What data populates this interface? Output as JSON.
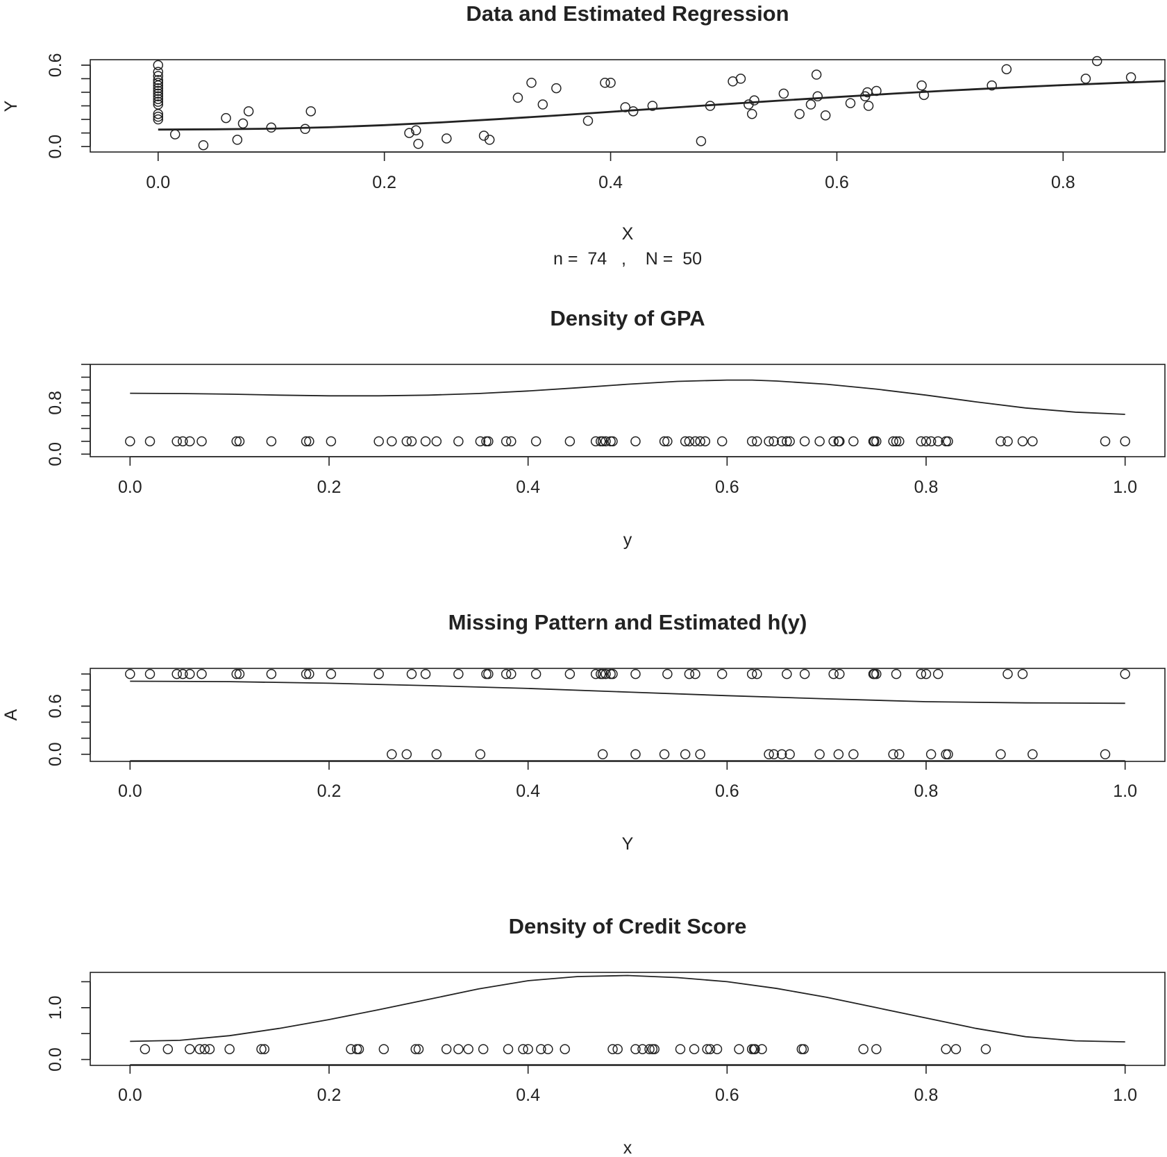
{
  "chart_data": [
    {
      "type": "scatter",
      "title": "Data and Estimated Regression",
      "xlabel": "X",
      "ylabel": "Y",
      "subtitle": "n =  74   ,    N =  50",
      "xlim": [
        -0.06,
        0.89
      ],
      "ylim": [
        -0.04,
        0.64
      ],
      "xticks": [
        0.0,
        0.2,
        0.4,
        0.6,
        0.8
      ],
      "xtick_labels": [
        "0.0",
        "0.2",
        "0.4",
        "0.6",
        "0.8"
      ],
      "yticks": [
        0.0,
        0.6
      ],
      "ytick_labels": [
        "0.0",
        "0.6"
      ],
      "yminor": [
        0.1,
        0.2,
        0.3,
        0.4,
        0.5,
        0.6
      ],
      "points": [
        [
          0,
          0.6
        ],
        [
          0,
          0.55
        ],
        [
          0,
          0.52
        ],
        [
          0,
          0.49
        ],
        [
          0,
          0.47
        ],
        [
          0,
          0.45
        ],
        [
          0,
          0.43
        ],
        [
          0,
          0.41
        ],
        [
          0,
          0.39
        ],
        [
          0,
          0.37
        ],
        [
          0,
          0.35
        ],
        [
          0,
          0.33
        ],
        [
          0,
          0.31
        ],
        [
          0,
          0.24
        ],
        [
          0,
          0.22
        ],
        [
          0,
          0.2
        ],
        [
          0.015,
          0.09
        ],
        [
          0.04,
          0.01
        ],
        [
          0.06,
          0.21
        ],
        [
          0.07,
          0.05
        ],
        [
          0.075,
          0.17
        ],
        [
          0.08,
          0.26
        ],
        [
          0.1,
          0.14
        ],
        [
          0.13,
          0.13
        ],
        [
          0.135,
          0.26
        ],
        [
          0.222,
          0.1
        ],
        [
          0.228,
          0.12
        ],
        [
          0.23,
          0.02
        ],
        [
          0.255,
          0.06
        ],
        [
          0.288,
          0.08
        ],
        [
          0.293,
          0.05
        ],
        [
          0.318,
          0.36
        ],
        [
          0.33,
          0.47
        ],
        [
          0.34,
          0.31
        ],
        [
          0.352,
          0.43
        ],
        [
          0.38,
          0.19
        ],
        [
          0.395,
          0.47
        ],
        [
          0.4,
          0.47
        ],
        [
          0.413,
          0.29
        ],
        [
          0.42,
          0.26
        ],
        [
          0.437,
          0.3
        ],
        [
          0.48,
          0.04
        ],
        [
          0.488,
          0.3
        ],
        [
          0.508,
          0.48
        ],
        [
          0.515,
          0.5
        ],
        [
          0.522,
          0.31
        ],
        [
          0.525,
          0.24
        ],
        [
          0.527,
          0.34
        ],
        [
          0.553,
          0.39
        ],
        [
          0.567,
          0.24
        ],
        [
          0.577,
          0.31
        ],
        [
          0.582,
          0.53
        ],
        [
          0.583,
          0.37
        ],
        [
          0.59,
          0.23
        ],
        [
          0.612,
          0.32
        ],
        [
          0.625,
          0.37
        ],
        [
          0.627,
          0.4
        ],
        [
          0.628,
          0.3
        ],
        [
          0.635,
          0.41
        ],
        [
          0.675,
          0.45
        ],
        [
          0.677,
          0.38
        ],
        [
          0.737,
          0.45
        ],
        [
          0.75,
          0.57
        ],
        [
          0.82,
          0.5
        ],
        [
          0.83,
          0.63
        ],
        [
          0.86,
          0.51
        ]
      ],
      "curve": [
        [
          0,
          0.125
        ],
        [
          0.05,
          0.127
        ],
        [
          0.1,
          0.132
        ],
        [
          0.15,
          0.142
        ],
        [
          0.2,
          0.158
        ],
        [
          0.25,
          0.178
        ],
        [
          0.3,
          0.202
        ],
        [
          0.35,
          0.228
        ],
        [
          0.4,
          0.256
        ],
        [
          0.45,
          0.284
        ],
        [
          0.5,
          0.312
        ],
        [
          0.55,
          0.339
        ],
        [
          0.6,
          0.365
        ],
        [
          0.65,
          0.39
        ],
        [
          0.7,
          0.413
        ],
        [
          0.75,
          0.434
        ],
        [
          0.8,
          0.453
        ],
        [
          0.85,
          0.47
        ],
        [
          0.89,
          0.482
        ]
      ]
    },
    {
      "type": "line",
      "title": "Density of GPA",
      "xlabel": "y",
      "ylabel": "",
      "xlim": [
        -0.04,
        1.04
      ],
      "ylim": [
        -0.04,
        1.4
      ],
      "xticks": [
        0.0,
        0.2,
        0.4,
        0.6,
        0.8,
        1.0
      ],
      "xtick_labels": [
        "0.0",
        "0.2",
        "0.4",
        "0.6",
        "0.8",
        "1.0"
      ],
      "yticks": [
        0.0,
        0.8
      ],
      "ytick_labels": [
        "0.0",
        "0.8"
      ],
      "yminor": [
        0.2,
        0.4,
        0.6,
        0.8,
        1.0,
        1.2,
        1.4
      ],
      "rug_y": 0.2,
      "rug": [
        0.0,
        0.02,
        0.047,
        0.053,
        0.06,
        0.072,
        0.107,
        0.11,
        0.142,
        0.177,
        0.18,
        0.202,
        0.25,
        0.263,
        0.278,
        0.283,
        0.297,
        0.308,
        0.33,
        0.352,
        0.358,
        0.36,
        0.378,
        0.383,
        0.408,
        0.442,
        0.468,
        0.473,
        0.475,
        0.478,
        0.483,
        0.485,
        0.508,
        0.537,
        0.54,
        0.558,
        0.562,
        0.568,
        0.573,
        0.578,
        0.595,
        0.625,
        0.63,
        0.642,
        0.647,
        0.655,
        0.66,
        0.663,
        0.678,
        0.693,
        0.707,
        0.712,
        0.713,
        0.727,
        0.747,
        0.748,
        0.75,
        0.767,
        0.77,
        0.773,
        0.795,
        0.8,
        0.805,
        0.812,
        0.82,
        0.822,
        0.875,
        0.882,
        0.897,
        0.907,
        0.98,
        1.0
      ],
      "curve": [
        [
          0,
          0.95
        ],
        [
          0.05,
          0.945
        ],
        [
          0.1,
          0.935
        ],
        [
          0.15,
          0.92
        ],
        [
          0.2,
          0.91
        ],
        [
          0.25,
          0.91
        ],
        [
          0.3,
          0.92
        ],
        [
          0.35,
          0.945
        ],
        [
          0.4,
          0.985
        ],
        [
          0.45,
          1.035
        ],
        [
          0.5,
          1.09
        ],
        [
          0.55,
          1.135
        ],
        [
          0.6,
          1.155
        ],
        [
          0.625,
          1.155
        ],
        [
          0.65,
          1.14
        ],
        [
          0.7,
          1.09
        ],
        [
          0.75,
          1.015
        ],
        [
          0.8,
          0.92
        ],
        [
          0.85,
          0.815
        ],
        [
          0.9,
          0.72
        ],
        [
          0.95,
          0.655
        ],
        [
          1.0,
          0.62
        ]
      ]
    },
    {
      "type": "scatter",
      "title": "Missing Pattern and Estimated h(y)",
      "xlabel": "Y",
      "ylabel": "A",
      "xlim": [
        -0.04,
        1.04
      ],
      "ylim": [
        -0.08,
        1.07
      ],
      "xticks": [
        0.0,
        0.2,
        0.4,
        0.6,
        0.8,
        1.0
      ],
      "xtick_labels": [
        "0.0",
        "0.2",
        "0.4",
        "0.6",
        "0.8",
        "1.0"
      ],
      "yticks": [
        0.0,
        0.6
      ],
      "ytick_labels": [
        "0.0",
        "0.6"
      ],
      "yminor": [
        0.2,
        0.4,
        0.6,
        0.8,
        1.0
      ],
      "points_a1": [
        0.0,
        0.02,
        0.047,
        0.053,
        0.06,
        0.072,
        0.107,
        0.11,
        0.142,
        0.177,
        0.18,
        0.202,
        0.25,
        0.283,
        0.297,
        0.33,
        0.358,
        0.36,
        0.378,
        0.383,
        0.408,
        0.442,
        0.468,
        0.473,
        0.475,
        0.478,
        0.483,
        0.485,
        0.508,
        0.54,
        0.562,
        0.568,
        0.595,
        0.625,
        0.63,
        0.66,
        0.678,
        0.707,
        0.713,
        0.747,
        0.748,
        0.75,
        0.77,
        0.795,
        0.8,
        0.812,
        0.882,
        0.897,
        1.0
      ],
      "points_a0": [
        0.263,
        0.278,
        0.308,
        0.352,
        0.475,
        0.508,
        0.537,
        0.558,
        0.573,
        0.642,
        0.647,
        0.655,
        0.663,
        0.693,
        0.712,
        0.727,
        0.767,
        0.773,
        0.805,
        0.82,
        0.822,
        0.875,
        0.907,
        0.98
      ],
      "curve": [
        [
          0,
          0.91
        ],
        [
          0.1,
          0.905
        ],
        [
          0.2,
          0.885
        ],
        [
          0.3,
          0.855
        ],
        [
          0.4,
          0.82
        ],
        [
          0.5,
          0.775
        ],
        [
          0.6,
          0.73
        ],
        [
          0.7,
          0.69
        ],
        [
          0.8,
          0.655
        ],
        [
          0.9,
          0.64
        ],
        [
          1.0,
          0.635
        ]
      ]
    },
    {
      "type": "line",
      "title": "Density of Credit Score",
      "xlabel": "x",
      "ylabel": "",
      "xlim": [
        -0.04,
        1.04
      ],
      "ylim": [
        -0.1,
        1.68
      ],
      "xticks": [
        0.0,
        0.2,
        0.4,
        0.6,
        0.8,
        1.0
      ],
      "xtick_labels": [
        "0.0",
        "0.2",
        "0.4",
        "0.6",
        "0.8",
        "1.0"
      ],
      "yticks": [
        0.0,
        1.0
      ],
      "ytick_labels": [
        "0.0",
        "1.0"
      ],
      "yminor": [
        0.5,
        1.0,
        1.5
      ],
      "rug_y": 0.2,
      "rug": [
        0.015,
        0.038,
        0.06,
        0.07,
        0.075,
        0.08,
        0.1,
        0.132,
        0.135,
        0.222,
        0.228,
        0.23,
        0.255,
        0.287,
        0.29,
        0.318,
        0.33,
        0.34,
        0.355,
        0.38,
        0.395,
        0.4,
        0.413,
        0.42,
        0.437,
        0.485,
        0.49,
        0.508,
        0.515,
        0.522,
        0.525,
        0.527,
        0.553,
        0.567,
        0.58,
        0.583,
        0.59,
        0.612,
        0.625,
        0.627,
        0.628,
        0.635,
        0.675,
        0.677,
        0.737,
        0.75,
        0.82,
        0.83,
        0.86
      ],
      "curve": [
        [
          0,
          0.35
        ],
        [
          0.05,
          0.37
        ],
        [
          0.1,
          0.46
        ],
        [
          0.15,
          0.6
        ],
        [
          0.2,
          0.77
        ],
        [
          0.25,
          0.96
        ],
        [
          0.3,
          1.16
        ],
        [
          0.35,
          1.36
        ],
        [
          0.4,
          1.52
        ],
        [
          0.45,
          1.6
        ],
        [
          0.5,
          1.62
        ],
        [
          0.55,
          1.58
        ],
        [
          0.6,
          1.5
        ],
        [
          0.65,
          1.37
        ],
        [
          0.7,
          1.2
        ],
        [
          0.75,
          1.0
        ],
        [
          0.8,
          0.8
        ],
        [
          0.85,
          0.6
        ],
        [
          0.9,
          0.44
        ],
        [
          0.95,
          0.36
        ],
        [
          1.0,
          0.34
        ]
      ]
    }
  ]
}
